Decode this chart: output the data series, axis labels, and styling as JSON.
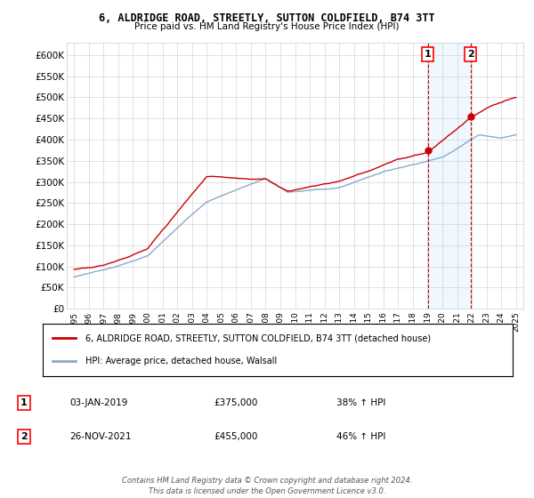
{
  "title1": "6, ALDRIDGE ROAD, STREETLY, SUTTON COLDFIELD, B74 3TT",
  "title2": "Price paid vs. HM Land Registry's House Price Index (HPI)",
  "ylabel_ticks": [
    "£0",
    "£50K",
    "£100K",
    "£150K",
    "£200K",
    "£250K",
    "£300K",
    "£350K",
    "£400K",
    "£450K",
    "£500K",
    "£550K",
    "£600K"
  ],
  "ytick_values": [
    0,
    50000,
    100000,
    150000,
    200000,
    250000,
    300000,
    350000,
    400000,
    450000,
    500000,
    550000,
    600000
  ],
  "ylim": [
    0,
    630000
  ],
  "xlim_start": 1994.5,
  "xlim_end": 2025.5,
  "xtick_labels": [
    "1995",
    "1996",
    "1997",
    "1998",
    "1999",
    "2000",
    "2001",
    "2002",
    "2003",
    "2004",
    "2005",
    "2006",
    "2007",
    "2008",
    "2009",
    "2010",
    "2011",
    "2012",
    "2013",
    "2014",
    "2015",
    "2016",
    "2017",
    "2018",
    "2019",
    "2020",
    "2021",
    "2022",
    "2023",
    "2024",
    "2025"
  ],
  "sale1_x": 2019.01,
  "sale1_y": 375000,
  "sale1_label": "1",
  "sale1_date": "03-JAN-2019",
  "sale1_price": "£375,000",
  "sale1_hpi": "38% ↑ HPI",
  "sale2_x": 2021.91,
  "sale2_y": 455000,
  "sale2_label": "2",
  "sale2_date": "26-NOV-2021",
  "sale2_price": "£455,000",
  "sale2_hpi": "46% ↑ HPI",
  "line1_color": "#cc0000",
  "line2_color": "#88aacc",
  "vline_color": "#cc0000",
  "legend1_text": "6, ALDRIDGE ROAD, STREETLY, SUTTON COLDFIELD, B74 3TT (detached house)",
  "legend2_text": "HPI: Average price, detached house, Walsall",
  "footer1": "Contains HM Land Registry data © Crown copyright and database right 2024.",
  "footer2": "This data is licensed under the Open Government Licence v3.0.",
  "bg_shade_color": "#ddeeff",
  "bg_shade_alpha": 0.45
}
